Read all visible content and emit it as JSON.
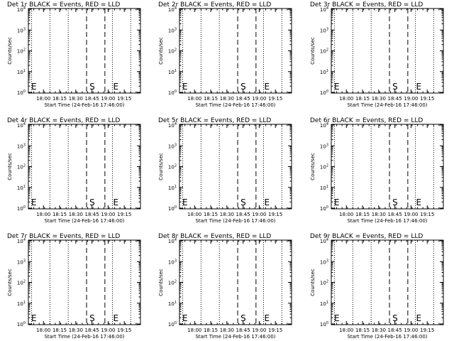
{
  "chart_data": [
    {
      "type": "line",
      "title": "Det 1r BLACK = Events, RED = LLD",
      "xlabel": "Start Time (24-Feb-16 17:46:00)",
      "ylabel": "Counts/sec",
      "x_tick_labels": [
        "18:00",
        "18:15",
        "18:30",
        "18:45",
        "19:00",
        "19:15"
      ],
      "y_ticks": [
        {
          "base": "10",
          "exp": "4"
        },
        {
          "base": "10",
          "exp": "3"
        },
        {
          "base": "10",
          "exp": "2"
        },
        {
          "base": "10",
          "exp": "1"
        },
        {
          "base": "10",
          "exp": "0"
        }
      ],
      "dashed_lines": [
        "18:40",
        "18:57"
      ],
      "dotted_lines": [
        "17:49",
        "18:06",
        "18:23",
        "19:04",
        "19:21"
      ],
      "markers": [
        {
          "label": "E",
          "x": "17:48"
        },
        {
          "label": "S",
          "x": "18:42"
        },
        {
          "label": "E",
          "x": "19:04"
        }
      ],
      "series": []
    },
    {
      "type": "line",
      "title": "Det 2r BLACK = Events, RED = LLD",
      "xlabel": "Start Time (24-Feb-16 17:46:00)",
      "ylabel": "Counts/sec",
      "x_tick_labels": [
        "18:00",
        "18:15",
        "18:30",
        "18:45",
        "19:00",
        "19:15"
      ],
      "y_ticks": [
        {
          "base": "10",
          "exp": "4"
        },
        {
          "base": "10",
          "exp": "3"
        },
        {
          "base": "10",
          "exp": "2"
        },
        {
          "base": "10",
          "exp": "1"
        },
        {
          "base": "10",
          "exp": "0"
        }
      ],
      "dashed_lines": [
        "18:40",
        "18:57"
      ],
      "dotted_lines": [
        "17:49",
        "18:06",
        "18:23",
        "19:04",
        "19:21"
      ],
      "markers": [
        {
          "label": "E",
          "x": "17:48"
        },
        {
          "label": "S",
          "x": "18:42"
        },
        {
          "label": "E",
          "x": "19:04"
        }
      ],
      "series": []
    },
    {
      "type": "line",
      "title": "Det 3r BLACK = Events, RED = LLD",
      "xlabel": "Start Time (24-Feb-16 17:46:00)",
      "ylabel": "Counts/sec",
      "x_tick_labels": [
        "18:00",
        "18:15",
        "18:30",
        "18:45",
        "19:00",
        "19:15"
      ],
      "y_ticks": [
        {
          "base": "10",
          "exp": "4"
        },
        {
          "base": "10",
          "exp": "3"
        },
        {
          "base": "10",
          "exp": "2"
        },
        {
          "base": "10",
          "exp": "1"
        },
        {
          "base": "10",
          "exp": "0"
        }
      ],
      "dashed_lines": [
        "18:40",
        "18:57"
      ],
      "dotted_lines": [
        "17:49",
        "18:06",
        "18:23",
        "19:04",
        "19:21"
      ],
      "markers": [
        {
          "label": "E",
          "x": "17:48"
        },
        {
          "label": "S",
          "x": "18:42"
        },
        {
          "label": "E",
          "x": "19:04"
        }
      ],
      "series": []
    },
    {
      "type": "line",
      "title": "Det 4r BLACK = Events, RED = LLD",
      "xlabel": "Start Time (24-Feb-16 17:46:00)",
      "ylabel": "Counts/sec",
      "x_tick_labels": [
        "18:00",
        "18:15",
        "18:30",
        "18:45",
        "19:00",
        "19:15"
      ],
      "y_ticks": [
        {
          "base": "10",
          "exp": "4"
        },
        {
          "base": "10",
          "exp": "3"
        },
        {
          "base": "10",
          "exp": "2"
        },
        {
          "base": "10",
          "exp": "1"
        },
        {
          "base": "10",
          "exp": "0"
        }
      ],
      "dashed_lines": [
        "18:40",
        "18:57"
      ],
      "dotted_lines": [
        "17:49",
        "18:06",
        "18:23",
        "19:04",
        "19:21"
      ],
      "markers": [
        {
          "label": "E",
          "x": "17:48"
        },
        {
          "label": "S",
          "x": "18:42"
        },
        {
          "label": "E",
          "x": "19:04"
        }
      ],
      "series": []
    },
    {
      "type": "line",
      "title": "Det 5r BLACK = Events, RED = LLD",
      "xlabel": "Start Time (24-Feb-16 17:46:00)",
      "ylabel": "Counts/sec",
      "x_tick_labels": [
        "18:00",
        "18:15",
        "18:30",
        "18:45",
        "19:00",
        "19:15"
      ],
      "y_ticks": [
        {
          "base": "10",
          "exp": "4"
        },
        {
          "base": "10",
          "exp": "3"
        },
        {
          "base": "10",
          "exp": "2"
        },
        {
          "base": "10",
          "exp": "1"
        },
        {
          "base": "10",
          "exp": "0"
        }
      ],
      "dashed_lines": [
        "18:40",
        "18:57"
      ],
      "dotted_lines": [
        "17:49",
        "18:06",
        "18:23",
        "19:04",
        "19:21"
      ],
      "markers": [
        {
          "label": "E",
          "x": "17:48"
        },
        {
          "label": "S",
          "x": "18:42"
        },
        {
          "label": "E",
          "x": "19:04"
        }
      ],
      "series": []
    },
    {
      "type": "line",
      "title": "Det 6r BLACK = Events, RED = LLD",
      "xlabel": "Start Time (24-Feb-16 17:46:00)",
      "ylabel": "Counts/sec",
      "x_tick_labels": [
        "18:00",
        "18:15",
        "18:30",
        "18:45",
        "19:00",
        "19:15"
      ],
      "y_ticks": [
        {
          "base": "10",
          "exp": "4"
        },
        {
          "base": "10",
          "exp": "3"
        },
        {
          "base": "10",
          "exp": "2"
        },
        {
          "base": "10",
          "exp": "1"
        },
        {
          "base": "10",
          "exp": "0"
        }
      ],
      "dashed_lines": [
        "18:40",
        "18:57"
      ],
      "dotted_lines": [
        "17:49",
        "18:06",
        "18:23",
        "19:04",
        "19:21"
      ],
      "markers": [
        {
          "label": "E",
          "x": "17:48"
        },
        {
          "label": "S",
          "x": "18:42"
        },
        {
          "label": "E",
          "x": "19:04"
        }
      ],
      "series": []
    },
    {
      "type": "line",
      "title": "Det 7r BLACK = Events, RED = LLD",
      "xlabel": "Start Time (24-Feb-16 17:46:00)",
      "ylabel": "Counts/sec",
      "x_tick_labels": [
        "18:00",
        "18:15",
        "18:30",
        "18:45",
        "19:00",
        "19:15"
      ],
      "y_ticks": [
        {
          "base": "10",
          "exp": "4"
        },
        {
          "base": "10",
          "exp": "3"
        },
        {
          "base": "10",
          "exp": "2"
        },
        {
          "base": "10",
          "exp": "1"
        },
        {
          "base": "10",
          "exp": "0"
        }
      ],
      "dashed_lines": [
        "18:40",
        "18:57"
      ],
      "dotted_lines": [
        "17:49",
        "18:06",
        "18:23",
        "19:04",
        "19:21"
      ],
      "markers": [
        {
          "label": "E",
          "x": "17:48"
        },
        {
          "label": "S",
          "x": "18:42"
        },
        {
          "label": "E",
          "x": "19:04"
        }
      ],
      "series": []
    },
    {
      "type": "line",
      "title": "Det 8r BLACK = Events, RED = LLD",
      "xlabel": "Start Time (24-Feb-16 17:46:00)",
      "ylabel": "Counts/sec",
      "x_tick_labels": [
        "18:00",
        "18:15",
        "18:30",
        "18:45",
        "19:00",
        "19:15"
      ],
      "y_ticks": [
        {
          "base": "10",
          "exp": "4"
        },
        {
          "base": "10",
          "exp": "3"
        },
        {
          "base": "10",
          "exp": "2"
        },
        {
          "base": "10",
          "exp": "1"
        },
        {
          "base": "10",
          "exp": "0"
        }
      ],
      "dashed_lines": [
        "18:40",
        "18:57"
      ],
      "dotted_lines": [
        "17:49",
        "18:06",
        "18:23",
        "19:04",
        "19:21"
      ],
      "markers": [
        {
          "label": "E",
          "x": "17:48"
        },
        {
          "label": "S",
          "x": "18:42"
        },
        {
          "label": "E",
          "x": "19:04"
        }
      ],
      "series": []
    },
    {
      "type": "line",
      "title": "Det 9r BLACK = Events, RED = LLD",
      "xlabel": "Start Time (24-Feb-16 17:46:00)",
      "ylabel": "Counts/sec",
      "x_tick_labels": [
        "18:00",
        "18:15",
        "18:30",
        "18:45",
        "19:00",
        "19:15"
      ],
      "y_ticks": [
        {
          "base": "10",
          "exp": "4"
        },
        {
          "base": "10",
          "exp": "3"
        },
        {
          "base": "10",
          "exp": "2"
        },
        {
          "base": "10",
          "exp": "1"
        },
        {
          "base": "10",
          "exp": "0"
        }
      ],
      "dashed_lines": [
        "18:40",
        "18:57"
      ],
      "dotted_lines": [
        "17:49",
        "18:06",
        "18:23",
        "19:04",
        "19:21"
      ],
      "markers": [
        {
          "label": "E",
          "x": "17:48"
        },
        {
          "label": "S",
          "x": "18:42"
        },
        {
          "label": "E",
          "x": "19:04"
        }
      ],
      "series": []
    }
  ]
}
